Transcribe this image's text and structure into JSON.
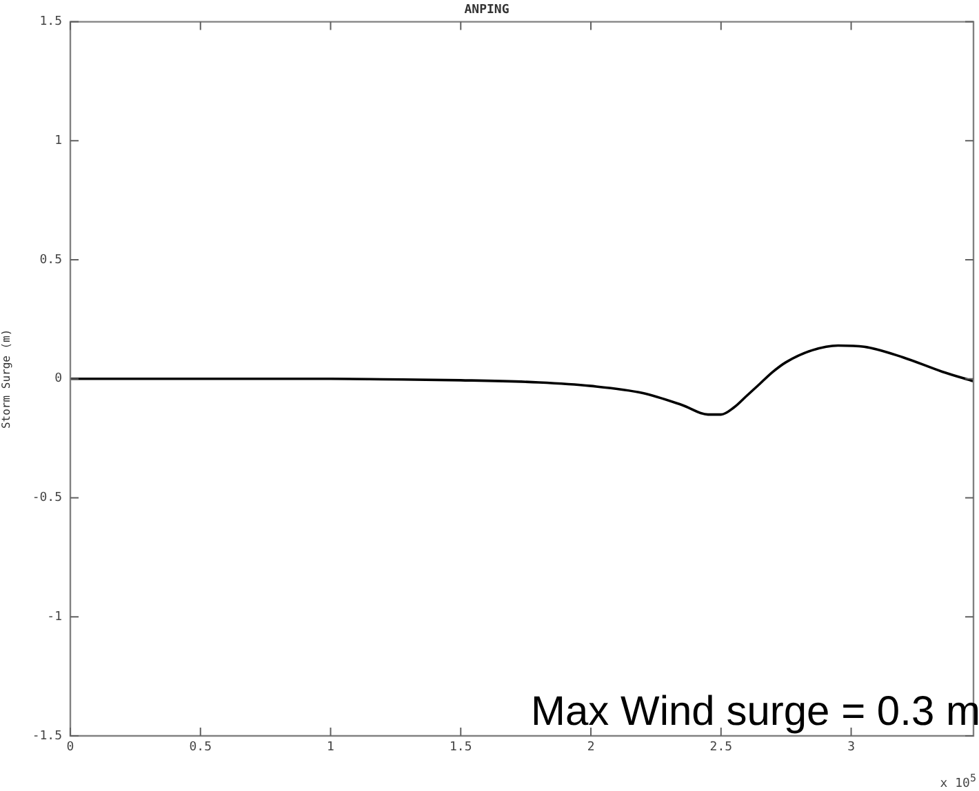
{
  "chart_data": {
    "type": "line",
    "title": "ANPING",
    "ylabel": "Storm Surge (m)",
    "x": [
      0,
      0.5,
      1.0,
      1.2,
      1.5,
      1.8,
      2.0,
      2.2,
      2.35,
      2.45,
      2.5,
      2.55,
      2.6,
      2.65,
      2.7,
      2.75,
      2.85,
      2.95,
      3.05,
      3.2,
      3.35,
      3.47
    ],
    "series": [
      {
        "color": "#000000",
        "values": [
          0,
          0,
          0,
          -0.002,
          -0.006,
          -0.015,
          -0.03,
          -0.06,
          -0.11,
          -0.15,
          -0.15,
          -0.12,
          -0.07,
          -0.02,
          0.03,
          0.07,
          0.12,
          0.14,
          0.135,
          0.09,
          0.03,
          -0.01
        ]
      }
    ],
    "xlim": [
      0,
      3.47
    ],
    "xticks": [
      0,
      0.5,
      1,
      1.5,
      2,
      2.5,
      3
    ],
    "ylim": [
      -1.5,
      1.5
    ],
    "yticks": [
      -1.5,
      -1,
      -0.5,
      0,
      0.5,
      1,
      1.5
    ],
    "grid": false,
    "legend": false,
    "marker": "none",
    "line_style": "solid",
    "annotations": [
      "x 10$^{5}$",
      "Max Wind surge = 0.3 m"
    ]
  }
}
